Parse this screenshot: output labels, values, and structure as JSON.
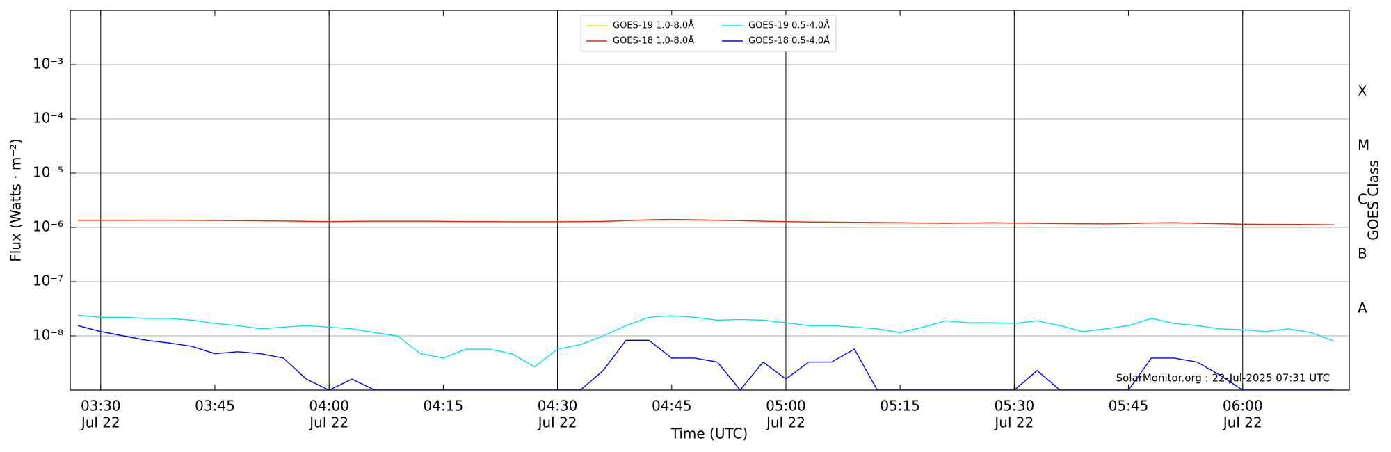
{
  "chart_data": {
    "type": "line",
    "x_label": "Time (UTC)",
    "y_label": "Flux (Watts · m⁻²)",
    "y2_label": "GOES Class",
    "annotation": "SolarMonitor.org : 22-Jul-2025 07:31 UTC",
    "log_y": true,
    "grid": true,
    "legend_loc": "upper center",
    "x": [
      "03:27",
      "03:30",
      "03:33",
      "03:36",
      "03:39",
      "03:42",
      "03:45",
      "03:48",
      "03:51",
      "03:54",
      "03:57",
      "04:00",
      "04:03",
      "04:06",
      "04:09",
      "04:12",
      "04:15",
      "04:18",
      "04:21",
      "04:24",
      "04:27",
      "04:30",
      "04:33",
      "04:36",
      "04:39",
      "04:42",
      "04:45",
      "04:48",
      "04:51",
      "04:54",
      "04:57",
      "05:00",
      "05:03",
      "05:06",
      "05:09",
      "05:12",
      "05:15",
      "05:18",
      "05:21",
      "05:24",
      "05:27",
      "05:30",
      "05:33",
      "05:36",
      "05:39",
      "05:42",
      "05:45",
      "05:48",
      "05:51",
      "05:54",
      "05:57",
      "06:00",
      "06:03",
      "06:06",
      "06:09",
      "06:12"
    ],
    "xlim": [
      "03:26",
      "06:14"
    ],
    "xticks": [
      {
        "value": "03:30",
        "label": "03:30",
        "date": "Jul 22"
      },
      {
        "value": "03:45",
        "label": "03:45"
      },
      {
        "value": "04:00",
        "label": "04:00",
        "date": "Jul 22"
      },
      {
        "value": "04:15",
        "label": "04:15"
      },
      {
        "value": "04:30",
        "label": "04:30",
        "date": "Jul 22"
      },
      {
        "value": "04:45",
        "label": "04:45"
      },
      {
        "value": "05:00",
        "label": "05:00",
        "date": "Jul 22"
      },
      {
        "value": "05:15",
        "label": "05:15"
      },
      {
        "value": "05:30",
        "label": "05:30",
        "date": "Jul 22"
      },
      {
        "value": "05:45",
        "label": "05:45"
      },
      {
        "value": "06:00",
        "label": "06:00",
        "date": "Jul 22"
      }
    ],
    "vlines": [
      "03:30",
      "04:00",
      "04:30",
      "05:00",
      "05:30",
      "06:00"
    ],
    "ylim": [
      1e-09,
      0.01
    ],
    "yticks": [
      {
        "value": 1e-08,
        "label": "10⁻⁸"
      },
      {
        "value": 1e-07,
        "label": "10⁻⁷"
      },
      {
        "value": 1e-06,
        "label": "10⁻⁶"
      },
      {
        "value": 1e-05,
        "label": "10⁻⁵"
      },
      {
        "value": 0.0001,
        "label": "10⁻⁴"
      },
      {
        "value": 0.001,
        "label": "10⁻³"
      }
    ],
    "y2lim": [
      1e-09,
      0.01
    ],
    "y2ticks": [
      {
        "value": 3.16e-08,
        "label": "A"
      },
      {
        "value": 3.16e-07,
        "label": "B"
      },
      {
        "value": 3.16e-06,
        "label": "C"
      },
      {
        "value": 3.16e-05,
        "label": "M"
      },
      {
        "value": 0.000316,
        "label": "X"
      }
    ],
    "series": [
      {
        "name": "GOES-19 1.0-8.0Å",
        "color": "#ffd700",
        "values": [
          1.35e-06,
          1.35e-06,
          1.35e-06,
          1.36e-06,
          1.36e-06,
          1.35e-06,
          1.34e-06,
          1.33e-06,
          1.32e-06,
          1.31e-06,
          1.29e-06,
          1.28e-06,
          1.29e-06,
          1.3e-06,
          1.3e-06,
          1.3e-06,
          1.29e-06,
          1.28e-06,
          1.28e-06,
          1.27e-06,
          1.27e-06,
          1.27e-06,
          1.28e-06,
          1.29e-06,
          1.33e-06,
          1.38e-06,
          1.4e-06,
          1.38e-06,
          1.35e-06,
          1.33e-06,
          1.3e-06,
          1.28e-06,
          1.26e-06,
          1.25e-06,
          1.24e-06,
          1.23e-06,
          1.22e-06,
          1.2e-06,
          1.19e-06,
          1.2e-06,
          1.22e-06,
          1.2e-06,
          1.19e-06,
          1.18e-06,
          1.17e-06,
          1.16e-06,
          1.18e-06,
          1.21e-06,
          1.22e-06,
          1.19e-06,
          1.17e-06,
          1.15e-06,
          1.14e-06,
          1.14e-06,
          1.13e-06,
          1.12e-06
        ]
      },
      {
        "name": "GOES-18 1.0-8.0Å",
        "color": "#e8290b",
        "values": [
          1.35e-06,
          1.35e-06,
          1.35e-06,
          1.36e-06,
          1.36e-06,
          1.35e-06,
          1.34e-06,
          1.33e-06,
          1.32e-06,
          1.31e-06,
          1.29e-06,
          1.28e-06,
          1.29e-06,
          1.3e-06,
          1.3e-06,
          1.3e-06,
          1.29e-06,
          1.28e-06,
          1.28e-06,
          1.27e-06,
          1.27e-06,
          1.27e-06,
          1.28e-06,
          1.29e-06,
          1.33e-06,
          1.38e-06,
          1.4e-06,
          1.38e-06,
          1.35e-06,
          1.33e-06,
          1.3e-06,
          1.28e-06,
          1.26e-06,
          1.25e-06,
          1.24e-06,
          1.23e-06,
          1.22e-06,
          1.2e-06,
          1.19e-06,
          1.2e-06,
          1.22e-06,
          1.2e-06,
          1.19e-06,
          1.18e-06,
          1.17e-06,
          1.16e-06,
          1.18e-06,
          1.21e-06,
          1.22e-06,
          1.19e-06,
          1.17e-06,
          1.15e-06,
          1.14e-06,
          1.14e-06,
          1.13e-06,
          1.12e-06
        ]
      },
      {
        "name": "GOES-19 0.5-4.0Å",
        "color": "#00e5ee",
        "values": [
          2.4e-08,
          2.2e-08,
          2.2e-08,
          2.1e-08,
          2.1e-08,
          1.95e-08,
          1.7e-08,
          1.55e-08,
          1.35e-08,
          1.45e-08,
          1.55e-08,
          1.45e-08,
          1.35e-08,
          1.15e-08,
          1e-08,
          4.7e-09,
          3.9e-09,
          5.7e-09,
          5.7e-09,
          4.7e-09,
          2.7e-09,
          5.7e-09,
          6.9e-09,
          1e-08,
          1.55e-08,
          2.2e-08,
          2.35e-08,
          2.2e-08,
          1.95e-08,
          2e-08,
          1.95e-08,
          1.75e-08,
          1.55e-08,
          1.55e-08,
          1.45e-08,
          1.35e-08,
          1.15e-08,
          1.45e-08,
          1.9e-08,
          1.75e-08,
          1.75e-08,
          1.7e-08,
          1.9e-08,
          1.55e-08,
          1.2e-08,
          1.35e-08,
          1.55e-08,
          2.1e-08,
          1.7e-08,
          1.55e-08,
          1.35e-08,
          1.3e-08,
          1.2e-08,
          1.35e-08,
          1.15e-08,
          8e-09
        ]
      },
      {
        "name": "GOES-18 0.5-4.0Å",
        "color": "#0000ee",
        "values": [
          1.55e-08,
          1.2e-08,
          1e-08,
          8.3e-09,
          7.4e-09,
          6.4e-09,
          4.7e-09,
          5.1e-09,
          4.7e-09,
          3.9e-09,
          1.6e-09,
          1e-09,
          1.6e-09,
          1e-09,
          1e-09,
          1e-09,
          1e-09,
          1e-09,
          1e-09,
          1e-09,
          1e-09,
          1e-09,
          1e-09,
          2.3e-09,
          8.3e-09,
          8.3e-09,
          3.9e-09,
          3.9e-09,
          3.3e-09,
          1e-09,
          3.3e-09,
          1.6e-09,
          3.3e-09,
          3.3e-09,
          5.7e-09,
          1e-09,
          1e-09,
          1e-09,
          1e-09,
          1e-09,
          1e-09,
          1e-09,
          2.3e-09,
          1e-09,
          1e-09,
          1e-09,
          1e-09,
          3.9e-09,
          3.9e-09,
          3.3e-09,
          1.9e-09,
          1e-09,
          1e-09,
          1e-09,
          1e-09,
          1e-09
        ]
      }
    ]
  }
}
